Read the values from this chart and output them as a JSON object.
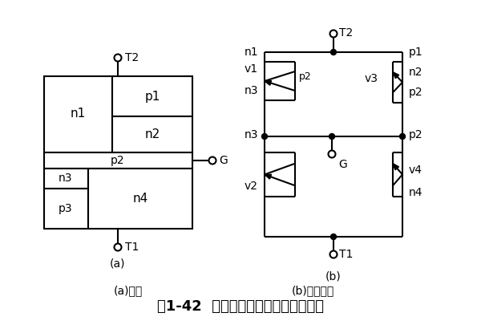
{
  "title": "图1-42 双向晶闸管的结构与等效电路",
  "subtitle_a": "(a)结构",
  "subtitle_b": "(b)等效电路",
  "caption_a": "(a)",
  "caption_b": "(b)",
  "bg_color": "#ffffff",
  "line_color": "#000000",
  "lw": 1.5
}
